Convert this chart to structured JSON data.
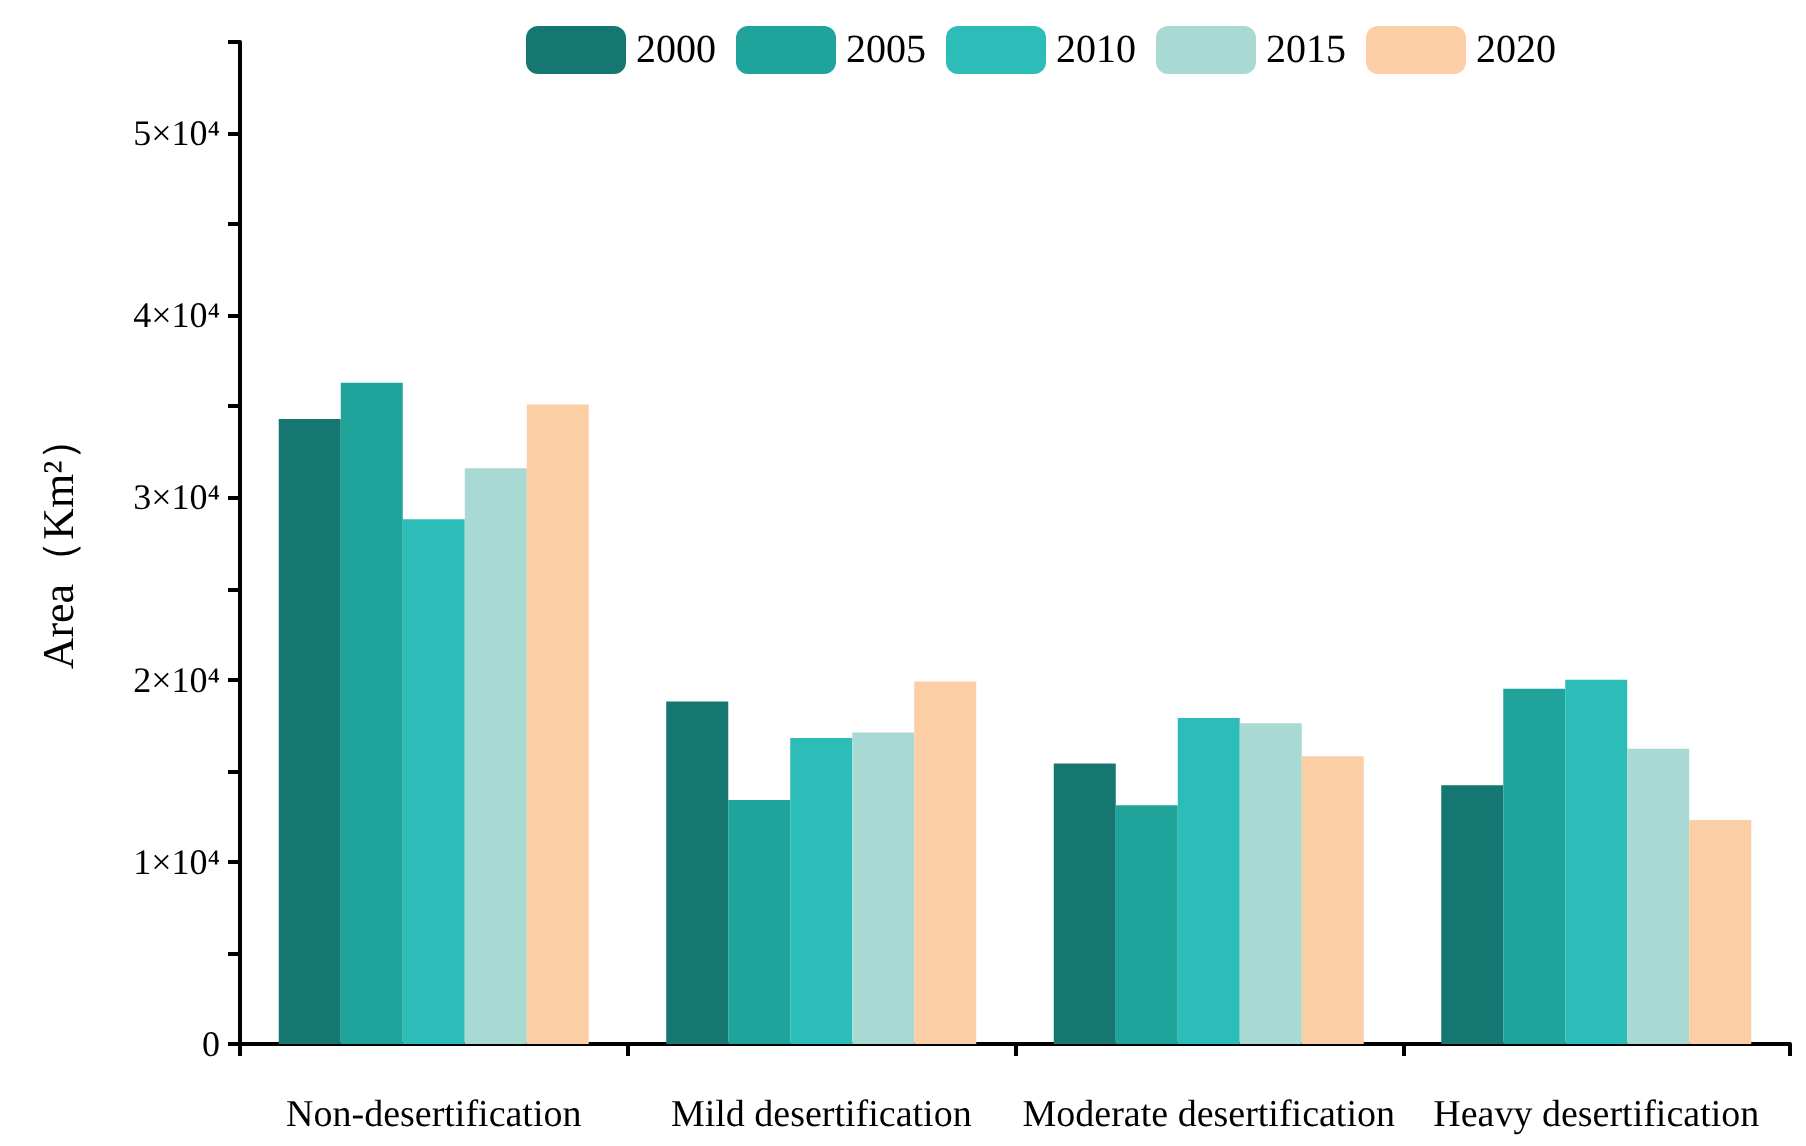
{
  "chart_data": {
    "type": "bar",
    "ylabel": "Area（Km²）",
    "categories": [
      "Non-desertification",
      "Mild desertification",
      "Moderate desertification",
      "Heavy desertification"
    ],
    "series": [
      {
        "name": "2000",
        "color": "#167671",
        "values": [
          34300,
          18800,
          15400,
          14200
        ]
      },
      {
        "name": "2005",
        "color": "#1fa39b",
        "values": [
          36300,
          13400,
          13100,
          19500
        ]
      },
      {
        "name": "2010",
        "color": "#2cbdb9",
        "values": [
          28800,
          16800,
          17900,
          20000
        ]
      },
      {
        "name": "2015",
        "color": "#a8dad3",
        "values": [
          31600,
          17100,
          17600,
          16200
        ]
      },
      {
        "name": "2020",
        "color": "#fccea5",
        "values": [
          35100,
          19900,
          15800,
          12300
        ]
      }
    ],
    "ylim": [
      0,
      55000
    ],
    "yticks": [
      {
        "value": 0,
        "label": "0"
      },
      {
        "value": 5000,
        "label": null
      },
      {
        "value": 10000,
        "label": "1×10⁴"
      },
      {
        "value": 15000,
        "label": null
      },
      {
        "value": 20000,
        "label": "2×10⁴"
      },
      {
        "value": 25000,
        "label": null
      },
      {
        "value": 30000,
        "label": "3×10⁴"
      },
      {
        "value": 35000,
        "label": null
      },
      {
        "value": 40000,
        "label": "4×10⁴"
      },
      {
        "value": 45000,
        "label": null
      },
      {
        "value": 50000,
        "label": "5×10⁴"
      },
      {
        "value": 55000,
        "label": null
      }
    ],
    "grid": false,
    "legend": "top"
  }
}
